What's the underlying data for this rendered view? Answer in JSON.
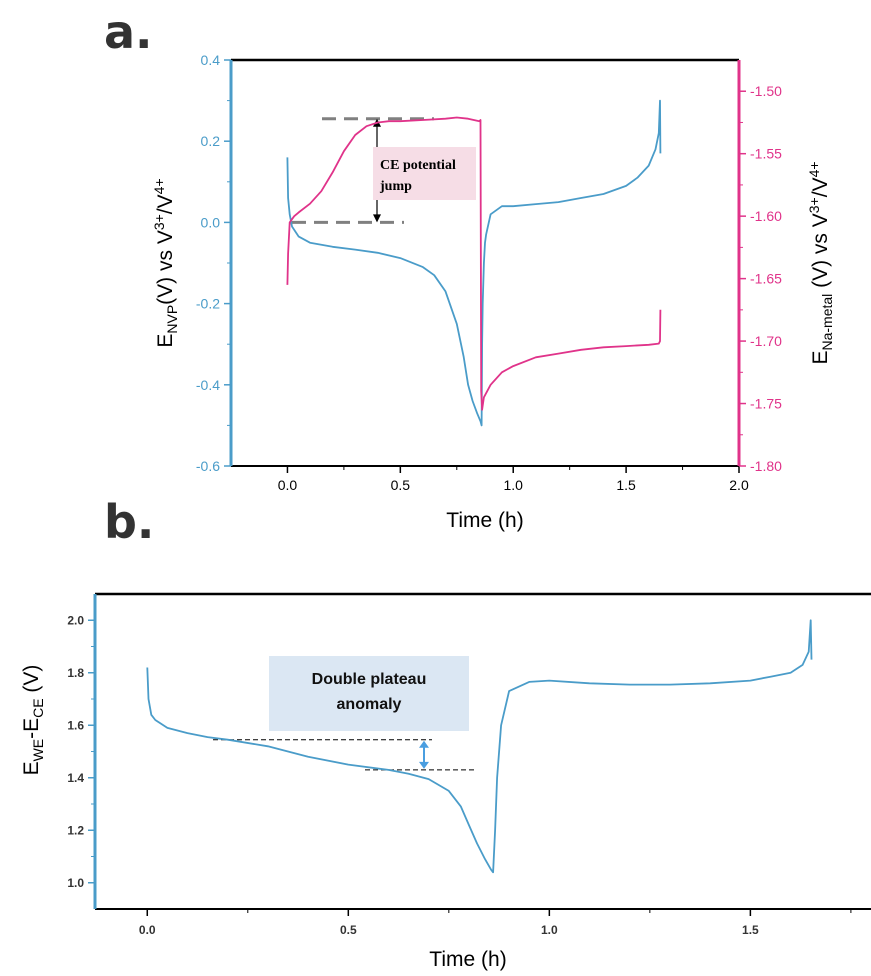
{
  "panel_labels": {
    "a": "a.",
    "b": "b."
  },
  "colors": {
    "blue": "#4a9cc9",
    "pink": "#e0338a",
    "dashed_gray": "#808080",
    "box_pink": "#f6dde6",
    "box_blue": "#dbe7f3",
    "arrow_blue": "#4a9ee0"
  },
  "chart_data": [
    {
      "type": "line",
      "panel": "a",
      "xlabel": "Time (h)",
      "ylabel_left": {
        "base": "E",
        "sub": "NVP",
        "rest": "(V) vs V",
        "sup1": "3+",
        "mid": "/V",
        "sup2": "4+"
      },
      "ylabel_right": {
        "base": "E",
        "sub": "Na-metal",
        "rest": " (V)  vs V",
        "sup1": "3+",
        "mid": "/V",
        "sup2": "4+"
      },
      "xlim": [
        -0.25,
        2.0
      ],
      "ylim_left": [
        -0.6,
        0.4
      ],
      "ylim_right": [
        -1.8,
        -1.475
      ],
      "xticks": [
        "0.0",
        "0.5",
        "1.0",
        "1.5",
        "2.0"
      ],
      "xtick_values": [
        0.0,
        0.5,
        1.0,
        1.5,
        2.0
      ],
      "yticks_left": [
        "-0.6",
        "-0.4",
        "-0.2",
        "0.0",
        "0.2",
        "0.4"
      ],
      "ytick_values_left": [
        -0.6,
        -0.4,
        -0.2,
        0.0,
        0.2,
        0.4
      ],
      "yticks_right": [
        "-1.80",
        "-1.75",
        "-1.70",
        "-1.65",
        "-1.60",
        "-1.55",
        "-1.50"
      ],
      "ytick_values_right": [
        -1.8,
        -1.75,
        -1.7,
        -1.65,
        -1.6,
        -1.55,
        -1.5
      ],
      "series": [
        {
          "axis": "left",
          "color": "#4a9cc9",
          "x": [
            0.0,
            0.003,
            0.01,
            0.02,
            0.05,
            0.1,
            0.2,
            0.3,
            0.4,
            0.5,
            0.6,
            0.65,
            0.7,
            0.75,
            0.78,
            0.8,
            0.82,
            0.84,
            0.855,
            0.86,
            0.862,
            0.865,
            0.87,
            0.875,
            0.88,
            0.9,
            0.95,
            1.0,
            1.1,
            1.2,
            1.3,
            1.4,
            1.5,
            1.55,
            1.6,
            1.63,
            1.645,
            1.65,
            1.652
          ],
          "y": [
            0.16,
            0.06,
            0.02,
            -0.01,
            -0.035,
            -0.05,
            -0.06,
            -0.067,
            -0.075,
            -0.088,
            -0.11,
            -0.13,
            -0.17,
            -0.25,
            -0.33,
            -0.4,
            -0.44,
            -0.47,
            -0.49,
            -0.5,
            -0.3,
            -0.2,
            -0.1,
            -0.05,
            -0.03,
            0.02,
            0.04,
            0.04,
            0.045,
            0.05,
            0.06,
            0.07,
            0.09,
            0.11,
            0.14,
            0.18,
            0.22,
            0.3,
            0.17
          ]
        },
        {
          "axis": "right",
          "color": "#e0338a",
          "x": [
            0.0,
            0.003,
            0.01,
            0.03,
            0.05,
            0.1,
            0.15,
            0.2,
            0.25,
            0.3,
            0.35,
            0.4,
            0.45,
            0.5,
            0.6,
            0.7,
            0.75,
            0.8,
            0.85,
            0.855,
            0.858,
            0.862,
            0.87,
            0.9,
            0.95,
            1.0,
            1.1,
            1.2,
            1.3,
            1.4,
            1.5,
            1.6,
            1.645,
            1.65,
            1.652
          ],
          "y": [
            -1.655,
            -1.63,
            -1.605,
            -1.6,
            -1.597,
            -1.59,
            -1.58,
            -1.565,
            -1.548,
            -1.535,
            -1.528,
            -1.525,
            -1.524,
            -1.524,
            -1.523,
            -1.522,
            -1.521,
            -1.522,
            -1.524,
            -1.523,
            -1.74,
            -1.755,
            -1.745,
            -1.735,
            -1.725,
            -1.72,
            -1.713,
            -1.71,
            -1.707,
            -1.705,
            -1.704,
            -1.703,
            -1.702,
            -1.7,
            -1.675
          ]
        }
      ],
      "annotation": {
        "text_line1": "CE potential",
        "text_line2": "jump",
        "upper_level_right": -1.522,
        "lower_level_right": -1.605
      }
    },
    {
      "type": "line",
      "panel": "b",
      "xlabel": "Time (h)",
      "ylabel": {
        "base": "E",
        "sub1": "WE",
        "mid": "-E",
        "sub2": "CE",
        "rest": " (V)"
      },
      "xlim": [
        -0.13,
        1.8
      ],
      "ylim": [
        0.9,
        2.1
      ],
      "xticks": [
        "0.0",
        "0.5",
        "1.0",
        "1.5"
      ],
      "xtick_values": [
        0.0,
        0.5,
        1.0,
        1.5
      ],
      "yticks": [
        "1.0",
        "1.2",
        "1.4",
        "1.6",
        "1.8",
        "2.0"
      ],
      "ytick_values": [
        1.0,
        1.2,
        1.4,
        1.6,
        1.8,
        2.0
      ],
      "series": [
        {
          "color": "#4a9cc9",
          "x": [
            0.0,
            0.003,
            0.01,
            0.02,
            0.05,
            0.1,
            0.15,
            0.2,
            0.3,
            0.4,
            0.5,
            0.6,
            0.65,
            0.7,
            0.75,
            0.78,
            0.8,
            0.82,
            0.84,
            0.855,
            0.86,
            0.865,
            0.87,
            0.88,
            0.9,
            0.95,
            1.0,
            1.1,
            1.2,
            1.3,
            1.4,
            1.5,
            1.55,
            1.6,
            1.63,
            1.645,
            1.65,
            1.652
          ],
          "y": [
            1.82,
            1.7,
            1.64,
            1.62,
            1.59,
            1.57,
            1.555,
            1.545,
            1.52,
            1.48,
            1.45,
            1.43,
            1.415,
            1.395,
            1.35,
            1.29,
            1.22,
            1.15,
            1.09,
            1.05,
            1.04,
            1.2,
            1.4,
            1.6,
            1.73,
            1.765,
            1.77,
            1.76,
            1.755,
            1.755,
            1.76,
            1.77,
            1.785,
            1.8,
            1.83,
            1.88,
            2.0,
            1.85
          ]
        }
      ],
      "annotation": {
        "text_line1": "Double plateau",
        "text_line2": "anomaly",
        "upper_level": 1.545,
        "lower_level": 1.43
      }
    }
  ]
}
